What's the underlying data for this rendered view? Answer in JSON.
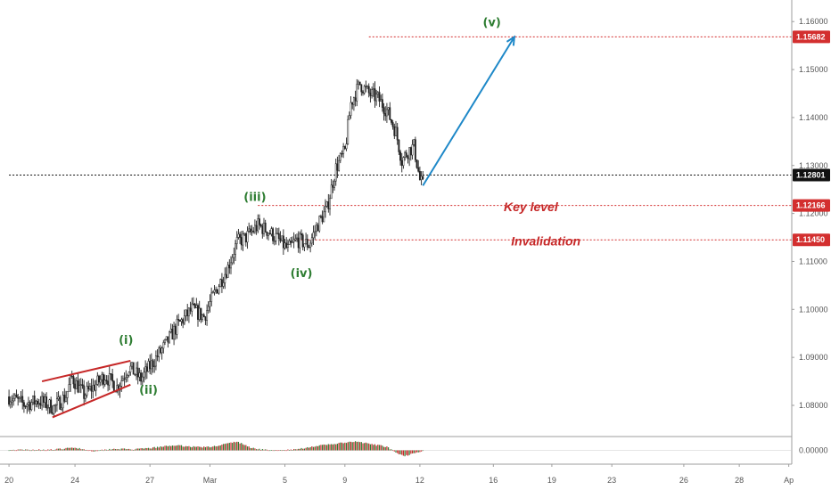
{
  "chart_data": {
    "type": "candlestick",
    "instrument_scale": "price",
    "ylim": [
      1.0735,
      1.1645
    ],
    "indicator_ylim": [
      -0.006,
      0.006
    ],
    "y_ticks": [
      "1.08000",
      "1.09000",
      "1.10000",
      "1.11000",
      "1.12000",
      "1.13000",
      "1.14000",
      "1.15000",
      "1.16000"
    ],
    "y_tick_values": [
      1.08,
      1.09,
      1.1,
      1.11,
      1.12,
      1.13,
      1.14,
      1.15,
      1.16
    ],
    "indicator_tick": "0.00000",
    "x_ticks": [
      "20",
      "24",
      "27",
      "Mar",
      "5",
      "9",
      "12",
      "16",
      "19",
      "23",
      "26",
      "28",
      "Ap"
    ],
    "x_tick_index": [
      0,
      44,
      94,
      134,
      184,
      224,
      274,
      323,
      362,
      402,
      450,
      487,
      520
    ],
    "price_levels": [
      {
        "label": "1.15682",
        "value": 1.15682,
        "color": "#d32f2f",
        "from_index": 240
      },
      {
        "label": "1.12801",
        "value": 1.12801,
        "color": "#111111",
        "from_index": 0
      },
      {
        "label": "1.12166",
        "value": 1.12166,
        "color": "#d32f2f",
        "from_index": 166
      },
      {
        "label": "1.11450",
        "value": 1.1145,
        "color": "#d32f2f",
        "from_index": 190
      }
    ],
    "annotations": [
      {
        "text": "Key level",
        "index": 348,
        "value": 1.1205
      },
      {
        "text": "Invalidation",
        "index": 358,
        "value": 1.1133
      }
    ],
    "wave_labels": [
      {
        "text": "(i)",
        "index": 78,
        "value": 1.0928
      },
      {
        "text": "(ii)",
        "index": 93,
        "value": 1.0824
      },
      {
        "text": "(iii)",
        "index": 164,
        "value": 1.1226
      },
      {
        "text": "(iv)",
        "index": 195,
        "value": 1.1067
      },
      {
        "text": "(v)",
        "index": 322,
        "value": 1.159
      }
    ],
    "wedge": [
      {
        "from": [
          22,
          1.085
        ],
        "to": [
          81,
          1.0893
        ]
      },
      {
        "from": [
          29,
          1.0775
        ],
        "to": [
          81,
          1.0843
        ]
      }
    ],
    "projection": {
      "from": [
        276,
        1.1258
      ],
      "to": [
        337,
        1.1568
      ]
    },
    "waypoints": [
      [
        0,
        1.0818
      ],
      [
        10,
        1.0802
      ],
      [
        20,
        1.081
      ],
      [
        30,
        1.0795
      ],
      [
        38,
        1.082
      ],
      [
        42,
        1.0858
      ],
      [
        50,
        1.0822
      ],
      [
        56,
        1.0838
      ],
      [
        64,
        1.0862
      ],
      [
        72,
        1.0838
      ],
      [
        80,
        1.088
      ],
      [
        88,
        1.0855
      ],
      [
        96,
        1.089
      ],
      [
        104,
        1.0925
      ],
      [
        112,
        1.0965
      ],
      [
        122,
        1.1
      ],
      [
        130,
        1.0985
      ],
      [
        138,
        1.104
      ],
      [
        146,
        1.1088
      ],
      [
        152,
        1.114
      ],
      [
        158,
        1.115
      ],
      [
        166,
        1.1175
      ],
      [
        172,
        1.1165
      ],
      [
        178,
        1.115
      ],
      [
        186,
        1.1125
      ],
      [
        192,
        1.1145
      ],
      [
        200,
        1.1135
      ],
      [
        206,
        1.1178
      ],
      [
        212,
        1.121
      ],
      [
        218,
        1.1295
      ],
      [
        224,
        1.133
      ],
      [
        228,
        1.143
      ],
      [
        234,
        1.147
      ],
      [
        240,
        1.145
      ],
      [
        246,
        1.144
      ],
      [
        252,
        1.1415
      ],
      [
        258,
        1.137
      ],
      [
        262,
        1.131
      ],
      [
        266,
        1.133
      ],
      [
        270,
        1.134
      ],
      [
        274,
        1.127
      ],
      [
        276,
        1.1258
      ]
    ],
    "indicator_waypoints": [
      [
        0,
        0.0001
      ],
      [
        30,
        0.0003
      ],
      [
        44,
        0.0012
      ],
      [
        56,
        -0.0003
      ],
      [
        70,
        0.0007
      ],
      [
        84,
        0.0004
      ],
      [
        96,
        0.0011
      ],
      [
        110,
        0.0022
      ],
      [
        122,
        0.0016
      ],
      [
        134,
        0.0014
      ],
      [
        146,
        0.003
      ],
      [
        152,
        0.0038
      ],
      [
        162,
        0.001
      ],
      [
        176,
        -0.0002
      ],
      [
        190,
        0.0003
      ],
      [
        204,
        0.0018
      ],
      [
        222,
        0.0032
      ],
      [
        232,
        0.0038
      ],
      [
        242,
        0.0026
      ],
      [
        252,
        0.0016
      ],
      [
        258,
        -0.0012
      ],
      [
        264,
        -0.0026
      ],
      [
        270,
        -0.001
      ],
      [
        276,
        -0.0003
      ]
    ],
    "candle_count": 277,
    "index_range": [
      -6,
      522
    ],
    "current_price_label": "1.12801"
  }
}
